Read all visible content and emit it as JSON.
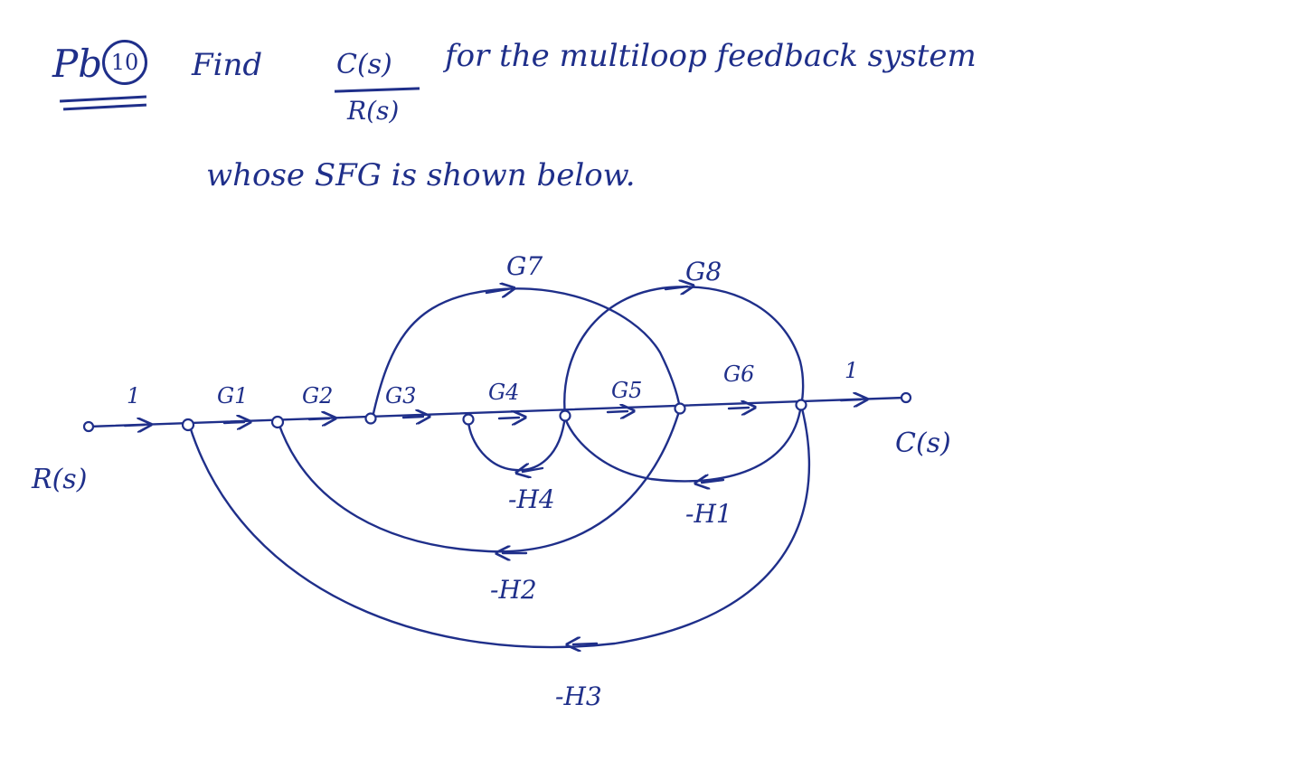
{
  "problem": {
    "prefix": "Pb",
    "number": "10",
    "find_word": "Find",
    "fraction_numerator": "C(s)",
    "fraction_denominator": "R(s)",
    "line1_rest": "for the multiloop feedback system",
    "line2": "whose SFG is shown below."
  },
  "graph": {
    "input_label": "R(s)",
    "output_label": "C(s)",
    "forward_branches": [
      "1",
      "G1",
      "G2",
      "G3",
      "G4",
      "G5",
      "G6",
      "1"
    ],
    "feedforward": [
      {
        "label": "G7"
      },
      {
        "label": "G8"
      }
    ],
    "feedback": [
      {
        "label": "-H1"
      },
      {
        "label": "-H2"
      },
      {
        "label": "-H3"
      },
      {
        "label": "-H4"
      }
    ],
    "ink_color": "#1f2f8a"
  }
}
